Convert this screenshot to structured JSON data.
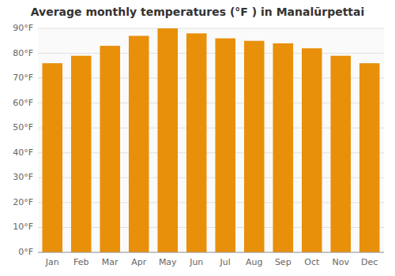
{
  "chart_data": {
    "type": "bar",
    "title": "Average monthly temperatures (°F ) in Manalūrpettai",
    "categories": [
      "Jan",
      "Feb",
      "Mar",
      "Apr",
      "May",
      "Jun",
      "Jul",
      "Aug",
      "Sep",
      "Oct",
      "Nov",
      "Dec"
    ],
    "values": [
      76,
      79,
      83,
      87,
      90,
      88,
      86,
      85,
      84,
      82,
      79,
      76
    ],
    "color": "#E8900A",
    "ylim": [
      0,
      90
    ],
    "yticks": [
      {
        "value": 0,
        "label": "0°F"
      },
      {
        "value": 10,
        "label": "10°F"
      },
      {
        "value": 20,
        "label": "20°F"
      },
      {
        "value": 30,
        "label": "30°F"
      },
      {
        "value": 40,
        "label": "40°F"
      },
      {
        "value": 50,
        "label": "50°F"
      },
      {
        "value": 60,
        "label": "60°F"
      },
      {
        "value": 70,
        "label": "70°F"
      },
      {
        "value": 80,
        "label": "80°F"
      },
      {
        "value": 90,
        "label": "90°F"
      }
    ],
    "grid": true
  }
}
